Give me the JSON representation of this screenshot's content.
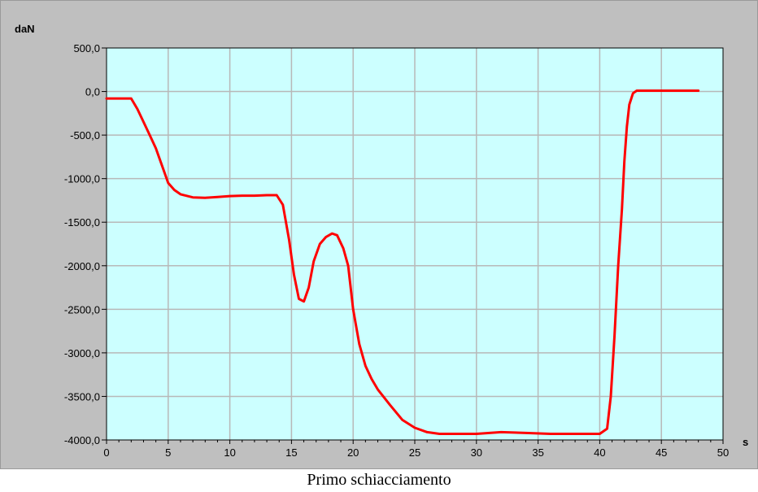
{
  "caption": "Primo schiacciamento",
  "chart_data": {
    "type": "line",
    "title": "",
    "ylabel": "daN",
    "xlabel": "s",
    "xlim": [
      0,
      50
    ],
    "ylim": [
      -4000,
      500
    ],
    "grid": true,
    "x_ticks": [
      0,
      5,
      10,
      15,
      20,
      25,
      30,
      35,
      40,
      45,
      50
    ],
    "x_tick_labels": [
      "0",
      "5",
      "10",
      "15",
      "20",
      "25",
      "30",
      "35",
      "40",
      "45",
      "50"
    ],
    "y_ticks": [
      500,
      0,
      -500,
      -1000,
      -1500,
      -2000,
      -2500,
      -3000,
      -3500,
      -4000
    ],
    "y_tick_labels": [
      "500,0",
      "0,0",
      "-500,0",
      "-1000,0",
      "-1500,0",
      "-2000,0",
      "-2500,0",
      "-3000,0",
      "-3500,0",
      "-4000,0"
    ],
    "colors": {
      "plot_background": "#ccffff",
      "frame_background": "#bfbfbf",
      "grid": "#b8b8b8",
      "line": "#ff0000"
    },
    "series": [
      {
        "x": [
          0,
          1,
          2,
          2.5,
          3,
          3.5,
          4,
          4.5,
          5,
          5.5,
          6,
          7,
          8,
          9,
          10,
          11,
          12,
          13,
          13.8,
          14.3,
          14.8,
          15.2,
          15.6,
          16,
          16.4,
          16.8,
          17.3,
          17.8,
          18.3,
          18.7,
          19.2,
          19.6,
          20,
          20.5,
          21,
          21.5,
          22,
          23,
          24,
          25,
          26,
          27,
          28,
          30,
          32,
          34,
          36,
          38,
          40,
          40.6,
          40.9,
          41.2,
          41.5,
          41.8,
          42,
          42.2,
          42.4,
          42.7,
          43,
          43.5,
          44,
          45,
          46,
          48
        ],
        "y": [
          -80,
          -80,
          -80,
          -200,
          -350,
          -500,
          -650,
          -850,
          -1050,
          -1130,
          -1180,
          -1215,
          -1220,
          -1210,
          -1200,
          -1195,
          -1195,
          -1190,
          -1190,
          -1300,
          -1700,
          -2100,
          -2380,
          -2410,
          -2250,
          -1950,
          -1750,
          -1670,
          -1630,
          -1650,
          -1800,
          -2000,
          -2500,
          -2900,
          -3150,
          -3300,
          -3420,
          -3600,
          -3770,
          -3860,
          -3910,
          -3930,
          -3930,
          -3930,
          -3910,
          -3920,
          -3930,
          -3930,
          -3930,
          -3870,
          -3500,
          -2800,
          -2000,
          -1350,
          -800,
          -400,
          -150,
          -20,
          10,
          10,
          10,
          10,
          10,
          10
        ]
      }
    ]
  }
}
